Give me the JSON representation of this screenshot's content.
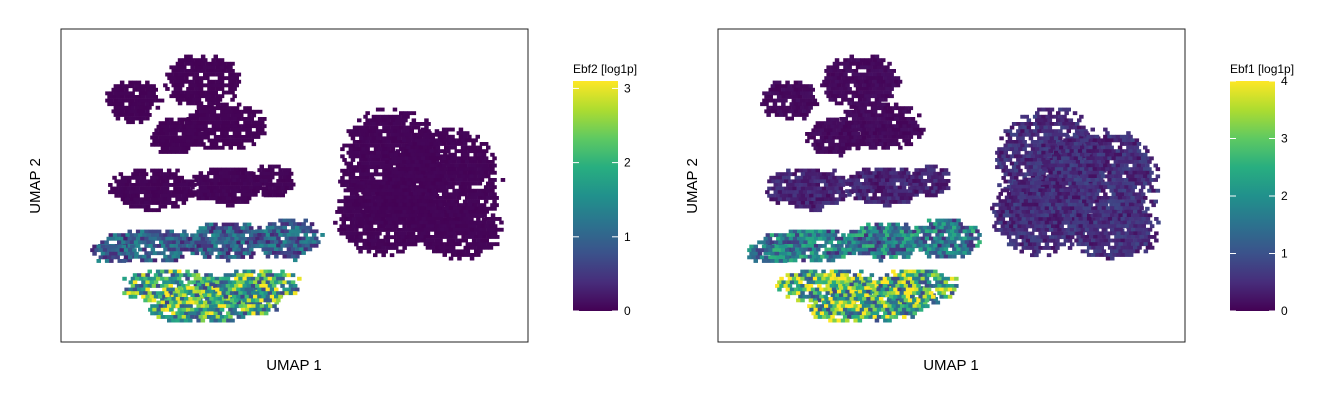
{
  "chart_data": [
    {
      "type": "heatmap",
      "plot_kind": "hexbin UMAP embedding colored by expression",
      "xlabel": "UMAP 1",
      "ylabel": "UMAP 2",
      "color_scale": "viridis",
      "colorbar": {
        "title": "Ebf2 [log1p]",
        "min": 0,
        "max": 3.1,
        "ticks": [
          0,
          1,
          2,
          3
        ]
      },
      "clusters": [
        {
          "region": "upper-left",
          "expression": 0.02
        },
        {
          "region": "middle-left",
          "expression": 0.03
        },
        {
          "region": "right",
          "expression": 0.03
        },
        {
          "region": "lower-left-upper",
          "expression": 0.9
        },
        {
          "region": "lower-left-lower",
          "expression": 1.9
        }
      ],
      "max_expression": 3.1
    },
    {
      "type": "heatmap",
      "plot_kind": "hexbin UMAP embedding colored by expression",
      "xlabel": "UMAP 1",
      "ylabel": "UMAP 2",
      "color_scale": "viridis",
      "colorbar": {
        "title": "Ebf1 [log1p]",
        "min": 0,
        "max": 4.0,
        "ticks": [
          0,
          1,
          2,
          3,
          4
        ]
      },
      "clusters": [
        {
          "region": "upper-left",
          "expression": 0.1
        },
        {
          "region": "middle-left",
          "expression": 0.4
        },
        {
          "region": "right",
          "expression": 0.5
        },
        {
          "region": "lower-left-upper",
          "expression": 1.6
        },
        {
          "region": "lower-left-lower",
          "expression": 2.7
        }
      ],
      "max_expression": 4.0
    }
  ],
  "colors": {
    "background": "#ffffff",
    "frame": "#222222"
  }
}
